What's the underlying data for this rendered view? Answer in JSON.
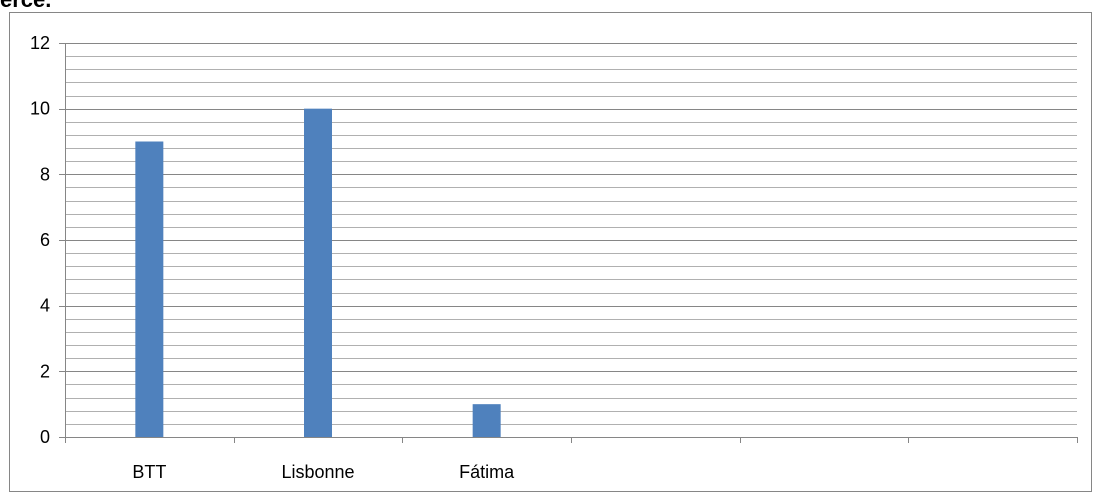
{
  "heading": "erce.",
  "chart_data": {
    "type": "bar",
    "categories": [
      "BTT",
      "Lisbonne",
      "Fátima",
      "",
      "",
      ""
    ],
    "series": [
      {
        "values": [
          9,
          10,
          1,
          null,
          null,
          null
        ]
      }
    ],
    "ylim": [
      0,
      12
    ],
    "y_ticks": [
      0,
      2,
      4,
      6,
      8,
      10,
      12
    ],
    "minor_grid_step": 0.4,
    "grid": true,
    "legend": false,
    "colors": {
      "bar": "#4F81BD",
      "major_grid": "#868686",
      "minor_grid": "#B0B0B0",
      "axis": "#868686"
    }
  }
}
